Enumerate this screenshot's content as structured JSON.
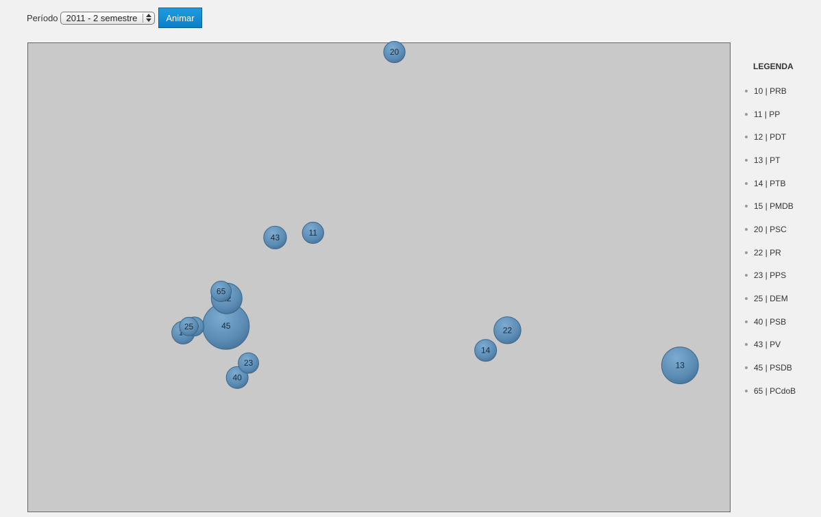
{
  "controls": {
    "period_label": "Período",
    "period_value": "2011 - 2 semestre",
    "animate_label": "Animar"
  },
  "legend": {
    "title": "LEGENDA",
    "items": [
      {
        "number": "10",
        "party": "PRB",
        "text": "10 | PRB"
      },
      {
        "number": "11",
        "party": "PP",
        "text": "11 | PP"
      },
      {
        "number": "12",
        "party": "PDT",
        "text": "12 | PDT"
      },
      {
        "number": "13",
        "party": "PT",
        "text": "13 | PT"
      },
      {
        "number": "14",
        "party": "PTB",
        "text": "14 | PTB"
      },
      {
        "number": "15",
        "party": "PMDB",
        "text": "15 | PMDB"
      },
      {
        "number": "20",
        "party": "PSC",
        "text": "20 | PSC"
      },
      {
        "number": "22",
        "party": "PR",
        "text": "22 | PR"
      },
      {
        "number": "23",
        "party": "PPS",
        "text": "23 | PPS"
      },
      {
        "number": "25",
        "party": "DEM",
        "text": "25 | DEM"
      },
      {
        "number": "40",
        "party": "PSB",
        "text": "40 | PSB"
      },
      {
        "number": "43",
        "party": "PV",
        "text": "43 | PV"
      },
      {
        "number": "45",
        "party": "PSDB",
        "text": "45 | PSDB"
      },
      {
        "number": "65",
        "party": "PCdoB",
        "text": "65 | PCdoB"
      }
    ]
  },
  "colors": {
    "bubble_fill": "#5b8db5",
    "bubble_stroke": "#3d6686",
    "plot_background": "#c9c9c9",
    "button": "#1890d8"
  },
  "chart_data": {
    "type": "scatter",
    "grid": false,
    "legend_position": "right",
    "xlim": [
      0,
      1
    ],
    "ylim": [
      0,
      1
    ],
    "points": [
      {
        "label": "20",
        "x": 0.522,
        "y": 0.981,
        "size": 0.46
      },
      {
        "label": "43",
        "x": 0.352,
        "y": 0.585,
        "size": 0.49
      },
      {
        "label": "11",
        "x": 0.406,
        "y": 0.595,
        "size": 0.46
      },
      {
        "label": "12",
        "x": 0.283,
        "y": 0.455,
        "size": 0.66
      },
      {
        "label": "65",
        "x": 0.275,
        "y": 0.47,
        "size": 0.44
      },
      {
        "label": "25",
        "x": 0.229,
        "y": 0.395,
        "size": 0.4
      },
      {
        "label": "10",
        "x": 0.237,
        "y": 0.395,
        "size": 0.41
      },
      {
        "label": "15",
        "x": 0.221,
        "y": 0.382,
        "size": 0.49
      },
      {
        "label": "45",
        "x": 0.282,
        "y": 0.396,
        "size": 1.0
      },
      {
        "label": "23",
        "x": 0.314,
        "y": 0.317,
        "size": 0.44
      },
      {
        "label": "40",
        "x": 0.298,
        "y": 0.286,
        "size": 0.47
      },
      {
        "label": "22",
        "x": 0.683,
        "y": 0.387,
        "size": 0.58
      },
      {
        "label": "14",
        "x": 0.652,
        "y": 0.344,
        "size": 0.47
      },
      {
        "label": "13",
        "x": 0.929,
        "y": 0.312,
        "size": 0.79
      }
    ]
  }
}
